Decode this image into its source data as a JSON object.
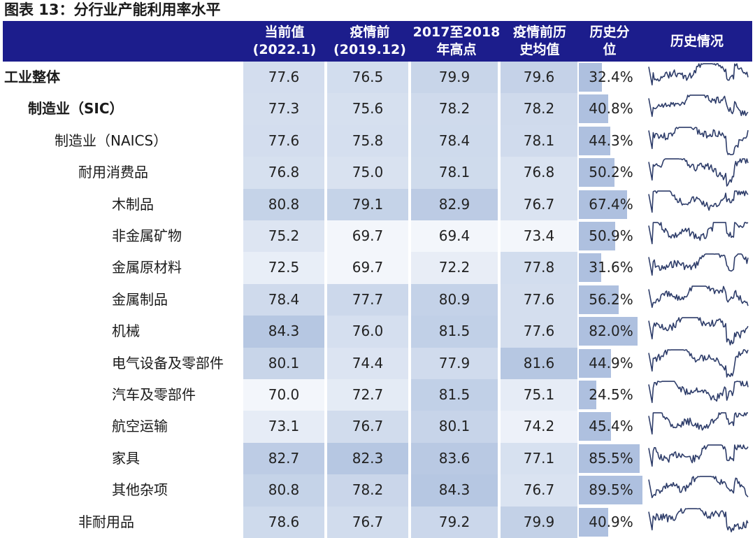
{
  "title": "图表 13：分行业产能利用率水平",
  "header": {
    "columns": [
      {
        "line1": "当前值",
        "line2": "(2022.1)"
      },
      {
        "line1": "疫情前",
        "line2": "(2019.12)"
      },
      {
        "line1": "2017至2018",
        "line2": "年高点"
      },
      {
        "line1": "疫情前历",
        "line2": "史均值"
      },
      {
        "line1": "历史分",
        "line2": "位"
      },
      {
        "line1": "历史情况",
        "line2": ""
      }
    ]
  },
  "rows": [
    {
      "name": "工业整体",
      "level": 0,
      "current": "77.6",
      "pre_covid": "76.5",
      "high_2017_2018": "79.9",
      "hist_avg": "79.6",
      "percentile": "32.4%",
      "percentile_value": 32.4
    },
    {
      "name": "制造业（SIC）",
      "level": 1,
      "current": "77.3",
      "pre_covid": "75.6",
      "high_2017_2018": "78.2",
      "hist_avg": "78.2",
      "percentile": "40.8%",
      "percentile_value": 40.8
    },
    {
      "name": "制造业（NAICS）",
      "level": 2,
      "current": "77.6",
      "pre_covid": "75.8",
      "high_2017_2018": "78.4",
      "hist_avg": "78.1",
      "percentile": "44.3%",
      "percentile_value": 44.3
    },
    {
      "name": "耐用消费品",
      "level": 3,
      "current": "76.8",
      "pre_covid": "75.0",
      "high_2017_2018": "78.1",
      "hist_avg": "76.8",
      "percentile": "50.2%",
      "percentile_value": 50.2
    },
    {
      "name": "木制品",
      "level": 4,
      "current": "80.8",
      "pre_covid": "79.1",
      "high_2017_2018": "82.9",
      "hist_avg": "76.7",
      "percentile": "67.4%",
      "percentile_value": 67.4
    },
    {
      "name": "非金属矿物",
      "level": 4,
      "current": "75.2",
      "pre_covid": "69.7",
      "high_2017_2018": "69.4",
      "hist_avg": "73.4",
      "percentile": "50.9%",
      "percentile_value": 50.9
    },
    {
      "name": "金属原材料",
      "level": 4,
      "current": "72.5",
      "pre_covid": "69.7",
      "high_2017_2018": "72.2",
      "hist_avg": "77.8",
      "percentile": "31.6%",
      "percentile_value": 31.6
    },
    {
      "name": "金属制品",
      "level": 4,
      "current": "78.4",
      "pre_covid": "77.7",
      "high_2017_2018": "80.9",
      "hist_avg": "77.6",
      "percentile": "56.2%",
      "percentile_value": 56.2
    },
    {
      "name": "机械",
      "level": 4,
      "current": "84.3",
      "pre_covid": "76.0",
      "high_2017_2018": "81.5",
      "hist_avg": "77.6",
      "percentile": "82.0%",
      "percentile_value": 82.0
    },
    {
      "name": "电气设备及零部件",
      "level": 4,
      "current": "80.1",
      "pre_covid": "74.4",
      "high_2017_2018": "77.9",
      "hist_avg": "81.6",
      "percentile": "44.9%",
      "percentile_value": 44.9
    },
    {
      "name": "汽车及零部件",
      "level": 4,
      "current": "70.0",
      "pre_covid": "72.7",
      "high_2017_2018": "81.5",
      "hist_avg": "75.1",
      "percentile": "24.5%",
      "percentile_value": 24.5
    },
    {
      "name": "航空运输",
      "level": 4,
      "current": "73.1",
      "pre_covid": "76.7",
      "high_2017_2018": "80.1",
      "hist_avg": "74.2",
      "percentile": "45.4%",
      "percentile_value": 45.4
    },
    {
      "name": "家具",
      "level": 4,
      "current": "82.7",
      "pre_covid": "82.3",
      "high_2017_2018": "83.6",
      "hist_avg": "77.1",
      "percentile": "85.5%",
      "percentile_value": 85.5
    },
    {
      "name": "其他杂项",
      "level": 4,
      "current": "80.8",
      "pre_covid": "78.2",
      "high_2017_2018": "84.3",
      "hist_avg": "76.7",
      "percentile": "89.5%",
      "percentile_value": 89.5
    },
    {
      "name": "非耐用品",
      "level": 3,
      "current": "78.6",
      "pre_covid": "76.7",
      "high_2017_2018": "79.2",
      "hist_avg": "79.9",
      "percentile": "40.9%",
      "percentile_value": 40.9
    }
  ],
  "colors": {
    "header_bg": "#1c1d8c",
    "header_text": "#ffffff",
    "percentile_bar": "#aec0df",
    "sparkline": "#2e3d6a",
    "heat_low": "#f3f6fb",
    "heat_high": "#b6c7e2"
  }
}
